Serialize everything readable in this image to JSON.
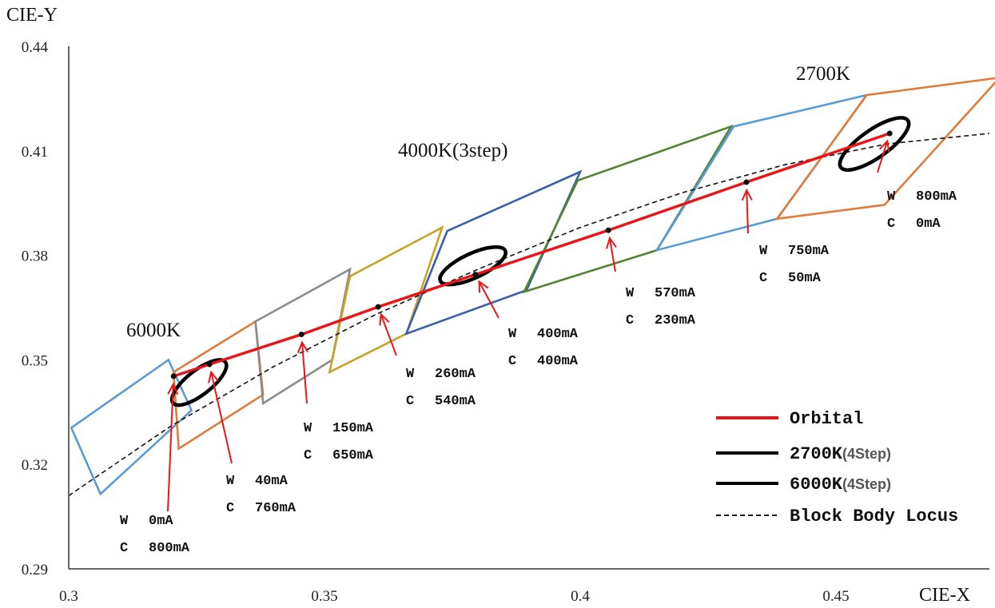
{
  "chart_data": {
    "type": "line",
    "xlabel": "CIE-X",
    "ylabel": "CIE-Y",
    "xlim": [
      0.3,
      0.48
    ],
    "ylim": [
      0.29,
      0.44
    ],
    "xticks": [
      "0.3",
      "0.35",
      "0.4",
      "0.45"
    ],
    "xtick_values": [
      0.3,
      0.35,
      0.4,
      0.45
    ],
    "yticks": [
      "0.29",
      "0.32",
      "0.35",
      "0.38",
      "0.41",
      "0.44"
    ],
    "ytick_values": [
      0.29,
      0.32,
      0.35,
      0.38,
      0.41,
      0.44
    ],
    "series": [
      {
        "name": "Orbital",
        "color": "#e8161b",
        "x": [
          0.3205,
          0.3275,
          0.3455,
          0.3605,
          0.3795,
          0.4055,
          0.4325,
          0.4605
        ],
        "y": [
          0.3453,
          0.3487,
          0.3573,
          0.3652,
          0.3745,
          0.3872,
          0.401,
          0.415
        ]
      },
      {
        "name": "Block Body Locus",
        "color": "#111111",
        "x": [
          0.3,
          0.32,
          0.34,
          0.36,
          0.38,
          0.4,
          0.42,
          0.44,
          0.46,
          0.48
        ],
        "y": [
          0.311,
          0.331,
          0.348,
          0.363,
          0.376,
          0.388,
          0.398,
          0.406,
          0.412,
          0.415
        ]
      }
    ],
    "point_labels": [
      {
        "w": "W",
        "w_val": "0mA",
        "c": "C",
        "c_val": "800mA"
      },
      {
        "w": "W",
        "w_val": "40mA",
        "c": "C",
        "c_val": "760mA"
      },
      {
        "w": "W",
        "w_val": "150mA",
        "c": "C",
        "c_val": "650mA"
      },
      {
        "w": "W",
        "w_val": "260mA",
        "c": "C",
        "c_val": "540mA"
      },
      {
        "w": "W",
        "w_val": "400mA",
        "c": "C",
        "c_val": "400mA"
      },
      {
        "w": "W",
        "w_val": "570mA",
        "c": "C",
        "c_val": "230mA"
      },
      {
        "w": "W",
        "w_val": "750mA",
        "c": "C",
        "c_val": "50mA"
      },
      {
        "w": "W",
        "w_val": "800mA",
        "c": "C",
        "c_val": "0mA"
      }
    ],
    "annotations": [
      "6000K",
      "4000K(3step)",
      "2700K"
    ],
    "ellipses": [
      {
        "cx": 0.3255,
        "cy": 0.3435,
        "rx": 0.0065,
        "ry": 0.0035,
        "angle_deg": -38
      },
      {
        "cx": 0.379,
        "cy": 0.377,
        "rx": 0.007,
        "ry": 0.0035,
        "angle_deg": -25
      },
      {
        "cx": 0.4575,
        "cy": 0.412,
        "rx": 0.008,
        "ry": 0.004,
        "angle_deg": -35
      }
    ],
    "bins": [
      {
        "color": "#5b9bd5",
        "pts": [
          [
            0.3005,
            0.3305
          ],
          [
            0.3062,
            0.3115
          ],
          [
            0.324,
            0.3355
          ],
          [
            0.3195,
            0.35
          ]
        ]
      },
      {
        "color": "#e07b39",
        "pts": [
          [
            0.3205,
            0.3465
          ],
          [
            0.3215,
            0.3245
          ],
          [
            0.338,
            0.34
          ],
          [
            0.3365,
            0.361
          ]
        ]
      },
      {
        "color": "#8c8c8c",
        "pts": [
          [
            0.3365,
            0.361
          ],
          [
            0.338,
            0.3375
          ],
          [
            0.3515,
            0.35
          ],
          [
            0.355,
            0.376
          ]
        ]
      },
      {
        "color": "#c9a227",
        "pts": [
          [
            0.355,
            0.374
          ],
          [
            0.351,
            0.3465
          ],
          [
            0.366,
            0.3575
          ],
          [
            0.373,
            0.388
          ]
        ]
      },
      {
        "color": "#3b5ea8",
        "pts": [
          [
            0.374,
            0.387
          ],
          [
            0.366,
            0.3575
          ],
          [
            0.3895,
            0.37
          ],
          [
            0.4,
            0.404
          ]
        ]
      },
      {
        "color": "#548235",
        "pts": [
          [
            0.3995,
            0.4015
          ],
          [
            0.389,
            0.3695
          ],
          [
            0.415,
            0.3815
          ],
          [
            0.4295,
            0.417
          ]
        ]
      },
      {
        "color": "#5b9bd5",
        "pts": [
          [
            0.43,
            0.417
          ],
          [
            0.415,
            0.3815
          ],
          [
            0.4385,
            0.3905
          ],
          [
            0.456,
            0.426
          ]
        ]
      },
      {
        "color": "#e07b39",
        "pts": [
          [
            0.456,
            0.426
          ],
          [
            0.4385,
            0.3905
          ],
          [
            0.4595,
            0.3945
          ],
          [
            0.482,
            0.431
          ]
        ]
      }
    ],
    "legend": {
      "position": "bottom-right",
      "entries": [
        {
          "label": "Orbital",
          "sub": "",
          "color": "#e8161b",
          "dash": false
        },
        {
          "label": "2700K",
          "sub": "(4Step)",
          "color": "#000000",
          "dash": false
        },
        {
          "label": "6000K",
          "sub": "(4Step)",
          "color": "#000000",
          "dash": false
        },
        {
          "label": "Block Body Locus",
          "sub": "",
          "color": "#000000",
          "dash": true
        }
      ]
    },
    "grid": false
  }
}
